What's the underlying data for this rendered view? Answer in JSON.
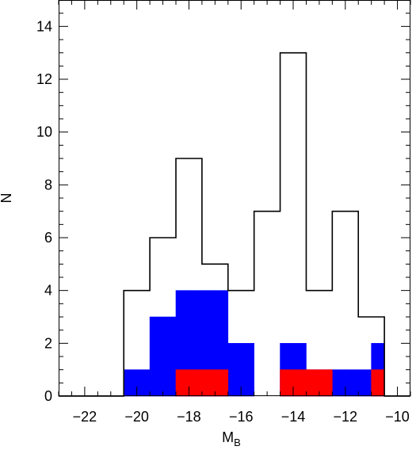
{
  "chart_data": {
    "type": "bar",
    "histogram": true,
    "xlabel": "M",
    "xlabel_sub": "B",
    "ylabel": "N",
    "xlim": [
      -23,
      -9.5
    ],
    "ylim": [
      0,
      15
    ],
    "x_ticks": [
      -22,
      -20,
      -18,
      -16,
      -14,
      -12,
      -10
    ],
    "x_tick_labels": [
      "−22",
      "−20",
      "−18",
      "−16",
      "−14",
      "−12",
      "−10"
    ],
    "x_minor_step": 0.5,
    "y_ticks": [
      0,
      2,
      4,
      6,
      8,
      10,
      12,
      14
    ],
    "y_tick_labels": [
      "0",
      "2",
      "4",
      "6",
      "8",
      "10",
      "12",
      "14"
    ],
    "y_minor_step": 0.5,
    "grid": false,
    "bin_edges": [
      -20.5,
      -19.5,
      -18.5,
      -17.5,
      -16.5,
      -15.5,
      -14.5,
      -13.5,
      -12.5,
      -11.5,
      -10.5
    ],
    "series": [
      {
        "style": "outline",
        "color": "#000000",
        "values": [
          4,
          6,
          9,
          5,
          4,
          7,
          13,
          4,
          7,
          3
        ]
      },
      {
        "style": "filled",
        "color": "#0000ff",
        "values": [
          1,
          3,
          4,
          4,
          2,
          0,
          2,
          1,
          1,
          2
        ]
      },
      {
        "style": "filled",
        "color": "#ff0000",
        "values": [
          0,
          0,
          1,
          1,
          0,
          0,
          1,
          1,
          0,
          1
        ]
      }
    ],
    "series_values_note": "outline: all; blue: subset; red: subset",
    "fine_bins": {
      "blue": [
        [
          -20.5,
          1
        ],
        [
          -20.0,
          1
        ],
        [
          -19.5,
          3
        ],
        [
          -19.0,
          3
        ],
        [
          -18.5,
          4
        ],
        [
          -18.0,
          4
        ],
        [
          -17.5,
          4
        ],
        [
          -17.0,
          4
        ],
        [
          -16.5,
          2
        ],
        [
          -16.0,
          2
        ],
        [
          -15.5,
          0
        ],
        [
          -15.0,
          0
        ],
        [
          -14.5,
          2
        ],
        [
          -14.0,
          2
        ],
        [
          -13.5,
          1
        ],
        [
          -13.0,
          1
        ],
        [
          -12.5,
          1
        ],
        [
          -12.0,
          1
        ],
        [
          -11.5,
          1
        ],
        [
          -11.0,
          2
        ]
      ],
      "red": [
        [
          -18.5,
          1
        ],
        [
          -18.0,
          1
        ],
        [
          -17.5,
          1
        ],
        [
          -17.0,
          1
        ],
        [
          -14.5,
          1
        ],
        [
          -14.0,
          1
        ],
        [
          -13.5,
          1
        ],
        [
          -13.0,
          1
        ],
        [
          -11.5,
          0
        ],
        [
          -11.0,
          1
        ]
      ]
    }
  }
}
